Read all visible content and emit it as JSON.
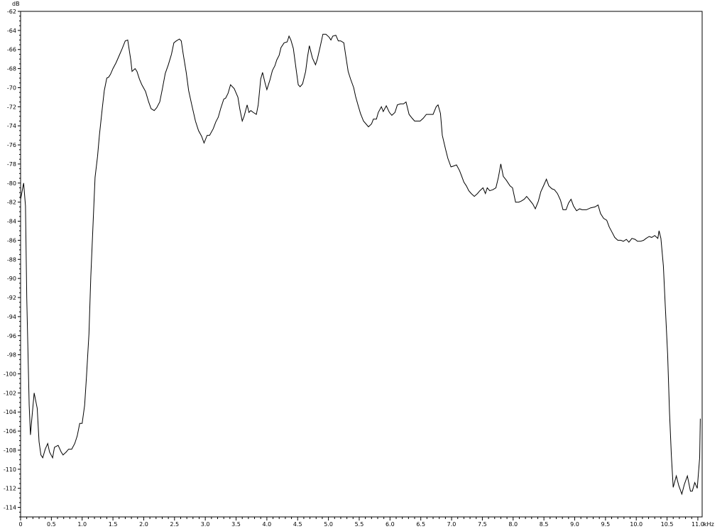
{
  "chart_data": {
    "type": "line",
    "title": "",
    "ylabel": "dB",
    "xunit": "kHz",
    "xlim": [
      0,
      11.07
    ],
    "ylim": [
      -115,
      -62
    ],
    "grid": false,
    "line_color": "#000000",
    "y_ticks": [
      -62,
      -64,
      -66,
      -68,
      -70,
      -72,
      -74,
      -76,
      -78,
      -80,
      -82,
      -84,
      -86,
      -88,
      -90,
      -92,
      -94,
      -96,
      -98,
      -100,
      -102,
      -104,
      -106,
      -108,
      -110,
      -112,
      -114
    ],
    "x_ticks": [
      "0",
      "0.5",
      "1.0",
      "1.5",
      "2.0",
      "2.5",
      "3.0",
      "3.5",
      "4.0",
      "4.5",
      "5.0",
      "5.5",
      "6.0",
      "6.5",
      "7.0",
      "7.5",
      "8.0",
      "8.5",
      "9.0",
      "9.5",
      "10.0",
      "10.5",
      "11.0"
    ],
    "x": [
      0.0,
      0.05,
      0.08,
      0.1,
      0.14,
      0.16,
      0.18,
      0.22,
      0.27,
      0.3,
      0.33,
      0.36,
      0.4,
      0.44,
      0.47,
      0.52,
      0.55,
      0.61,
      0.66,
      0.69,
      0.74,
      0.78,
      0.83,
      0.88,
      0.92,
      0.96,
      1.0,
      1.04,
      1.07,
      1.11,
      1.14,
      1.18,
      1.21,
      1.25,
      1.28,
      1.33,
      1.36,
      1.4,
      1.43,
      1.46,
      1.5,
      1.55,
      1.59,
      1.65,
      1.7,
      1.74,
      1.79,
      1.81,
      1.86,
      1.89,
      1.93,
      1.97,
      2.03,
      2.08,
      2.12,
      2.17,
      2.21,
      2.26,
      2.3,
      2.35,
      2.4,
      2.45,
      2.49,
      2.53,
      2.58,
      2.61,
      2.64,
      2.69,
      2.73,
      2.78,
      2.84,
      2.89,
      2.94,
      2.98,
      3.03,
      3.07,
      3.13,
      3.17,
      3.21,
      3.25,
      3.3,
      3.33,
      3.37,
      3.41,
      3.47,
      3.53,
      3.56,
      3.6,
      3.63,
      3.68,
      3.71,
      3.74,
      3.78,
      3.83,
      3.86,
      3.9,
      3.93,
      3.97,
      4.0,
      4.05,
      4.09,
      4.13,
      4.16,
      4.2,
      4.23,
      4.28,
      4.33,
      4.36,
      4.39,
      4.43,
      4.48,
      4.51,
      4.54,
      4.58,
      4.63,
      4.66,
      4.69,
      4.74,
      4.79,
      4.82,
      4.87,
      4.91,
      4.96,
      5.01,
      5.04,
      5.07,
      5.12,
      5.16,
      5.2,
      5.25,
      5.28,
      5.32,
      5.36,
      5.41,
      5.44,
      5.48,
      5.52,
      5.57,
      5.61,
      5.65,
      5.7,
      5.73,
      5.78,
      5.81,
      5.86,
      5.89,
      5.94,
      5.99,
      6.03,
      6.08,
      6.12,
      6.17,
      6.22,
      6.26,
      6.31,
      6.36,
      6.4,
      6.45,
      6.49,
      6.54,
      6.59,
      6.63,
      6.7,
      6.75,
      6.78,
      6.82,
      6.85,
      6.9,
      6.94,
      6.99,
      7.04,
      7.08,
      7.13,
      7.16,
      7.2,
      7.24,
      7.28,
      7.32,
      7.37,
      7.42,
      7.46,
      7.51,
      7.55,
      7.58,
      7.62,
      7.67,
      7.72,
      7.76,
      7.8,
      7.84,
      7.89,
      7.95,
      7.99,
      8.04,
      8.09,
      8.13,
      8.18,
      8.22,
      8.27,
      8.32,
      8.36,
      8.41,
      8.45,
      8.5,
      8.54,
      8.58,
      8.63,
      8.67,
      8.72,
      8.77,
      8.81,
      8.86,
      8.9,
      8.94,
      8.98,
      9.03,
      9.08,
      9.12,
      9.19,
      9.26,
      9.33,
      9.38,
      9.42,
      9.47,
      9.52,
      9.56,
      9.61,
      9.65,
      9.7,
      9.75,
      9.79,
      9.84,
      9.88,
      9.93,
      9.98,
      10.02,
      10.07,
      10.12,
      10.16,
      10.21,
      10.25,
      10.3,
      10.35,
      10.37,
      10.4,
      10.44,
      10.47,
      10.51,
      10.54,
      10.57,
      10.6,
      10.65,
      10.69,
      10.74,
      10.78,
      10.83,
      10.88,
      10.91,
      10.95,
      10.99,
      11.03,
      11.04
    ],
    "y": [
      -81.7,
      -80.0,
      -82.4,
      -92.1,
      -103.3,
      -106.4,
      -104.9,
      -102.0,
      -103.6,
      -107.1,
      -108.5,
      -108.8,
      -107.9,
      -107.3,
      -108.2,
      -108.8,
      -107.7,
      -107.5,
      -108.2,
      -108.5,
      -108.2,
      -107.9,
      -107.9,
      -107.3,
      -106.5,
      -105.2,
      -105.2,
      -103.3,
      -100.3,
      -95.8,
      -89.8,
      -83.9,
      -79.4,
      -77.2,
      -75.0,
      -72.0,
      -70.3,
      -69.0,
      -68.9,
      -68.6,
      -68.0,
      -67.4,
      -66.8,
      -65.9,
      -65.1,
      -65.0,
      -67.1,
      -68.3,
      -68.0,
      -68.3,
      -69.1,
      -69.7,
      -70.4,
      -71.5,
      -72.2,
      -72.4,
      -72.1,
      -71.5,
      -70.2,
      -68.5,
      -67.6,
      -66.5,
      -65.3,
      -65.1,
      -64.9,
      -65.1,
      -66.4,
      -68.4,
      -70.3,
      -71.8,
      -73.5,
      -74.5,
      -75.1,
      -75.8,
      -75.0,
      -75.0,
      -74.3,
      -73.6,
      -73.1,
      -72.2,
      -71.2,
      -71.1,
      -70.6,
      -69.7,
      -70.1,
      -71.0,
      -72.2,
      -73.5,
      -73.0,
      -71.8,
      -72.6,
      -72.4,
      -72.6,
      -72.8,
      -71.8,
      -69.1,
      -68.4,
      -69.5,
      -70.2,
      -69.2,
      -68.2,
      -67.7,
      -67.1,
      -66.6,
      -65.8,
      -65.3,
      -65.2,
      -64.6,
      -65.0,
      -65.9,
      -68.3,
      -69.7,
      -69.9,
      -69.6,
      -68.3,
      -66.8,
      -65.6,
      -66.9,
      -67.6,
      -67.0,
      -65.6,
      -64.4,
      -64.4,
      -64.7,
      -65.0,
      -64.6,
      -64.5,
      -65.1,
      -65.1,
      -65.3,
      -66.6,
      -68.3,
      -69.1,
      -70.0,
      -70.9,
      -71.8,
      -72.7,
      -73.5,
      -73.8,
      -74.1,
      -73.8,
      -73.3,
      -73.3,
      -72.6,
      -72.0,
      -72.5,
      -71.9,
      -72.6,
      -72.9,
      -72.6,
      -71.8,
      -71.7,
      -71.7,
      -71.5,
      -72.8,
      -73.2,
      -73.5,
      -73.5,
      -73.5,
      -73.2,
      -72.8,
      -72.8,
      -72.8,
      -72.0,
      -71.8,
      -72.7,
      -75.0,
      -76.4,
      -77.4,
      -78.3,
      -78.2,
      -78.1,
      -78.7,
      -79.2,
      -79.9,
      -80.3,
      -80.8,
      -81.1,
      -81.4,
      -81.1,
      -80.8,
      -80.5,
      -81.1,
      -80.5,
      -80.8,
      -80.7,
      -80.5,
      -79.4,
      -78.0,
      -79.3,
      -79.7,
      -80.3,
      -80.5,
      -82.0,
      -82.0,
      -81.9,
      -81.7,
      -81.4,
      -81.8,
      -82.2,
      -82.7,
      -81.9,
      -80.9,
      -80.2,
      -79.6,
      -80.3,
      -80.6,
      -80.7,
      -81.1,
      -81.8,
      -82.8,
      -82.8,
      -82.1,
      -81.7,
      -82.4,
      -82.9,
      -82.7,
      -82.8,
      -82.8,
      -82.6,
      -82.5,
      -82.3,
      -83.2,
      -83.7,
      -83.9,
      -84.6,
      -85.2,
      -85.7,
      -86.0,
      -86.0,
      -86.1,
      -85.9,
      -86.2,
      -85.8,
      -85.9,
      -86.1,
      -86.1,
      -86.0,
      -85.8,
      -85.6,
      -85.7,
      -85.5,
      -85.8,
      -85.0,
      -85.8,
      -88.7,
      -92.8,
      -98.0,
      -104.0,
      -108.5,
      -111.9,
      -110.7,
      -111.7,
      -112.6,
      -111.6,
      -110.7,
      -112.3,
      -112.3,
      -111.4,
      -112.0,
      -108.8,
      -104.7
    ]
  }
}
